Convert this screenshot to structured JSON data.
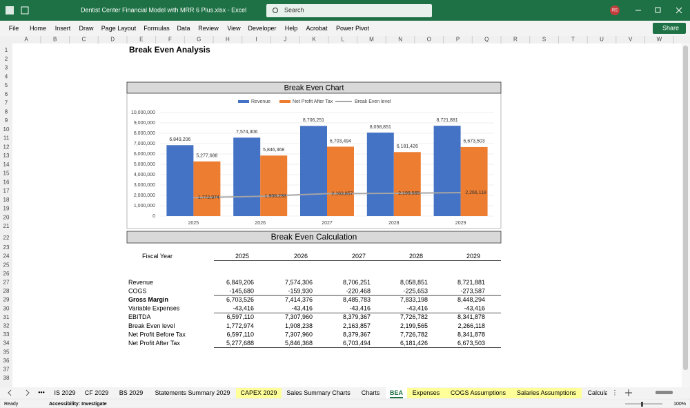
{
  "window": {
    "file_name": "Dentist Center Financial Model with MRR 6 Plus.xlsx  -  Excel",
    "search": "Search",
    "user": "RS"
  },
  "ribbon": {
    "tabs": [
      "File",
      "Home",
      "Insert",
      "Draw",
      "Page Layout",
      "Formulas",
      "Data",
      "Review",
      "View",
      "Developer",
      "Help",
      "Acrobat",
      "Power Pivot"
    ],
    "share": "Share"
  },
  "grid": {
    "columns": [
      "A",
      "B",
      "C",
      "D",
      "E",
      "F",
      "G",
      "H",
      "I",
      "J",
      "K",
      "L",
      "M",
      "N",
      "O",
      "P",
      "Q",
      "R",
      "S",
      "T",
      "U",
      "V",
      "W"
    ],
    "rows": [
      1,
      2,
      3,
      4,
      5,
      6,
      7,
      8,
      9,
      10,
      11,
      12,
      13,
      14,
      15,
      16,
      17,
      18,
      19,
      20,
      21,
      22,
      23,
      24,
      25,
      26,
      27,
      28,
      29,
      30,
      31,
      32,
      33,
      34,
      35,
      36,
      37,
      38
    ]
  },
  "sheet": {
    "title": "Break Even Analysis",
    "chart_heading": "Break Even Chart",
    "calc_heading": "Break Even Calculation"
  },
  "chart_data": {
    "type": "bar",
    "categories": [
      "2025",
      "2026",
      "2027",
      "2028",
      "2029"
    ],
    "series": [
      {
        "name": "Revenue",
        "type": "bar",
        "color": "#4472c4",
        "values": [
          6849206,
          7574306,
          8706251,
          8058851,
          8721881
        ],
        "value_labels": [
          "6,849,206",
          "7,574,306",
          "8,706,251",
          "8,058,851",
          "8,721,881"
        ]
      },
      {
        "name": "Net Profit After Tax",
        "type": "bar",
        "color": "#ed7d31",
        "values": [
          5277688,
          5846368,
          6703494,
          6181426,
          6673503
        ],
        "value_labels": [
          "5,277,688",
          "5,846,368",
          "6,703,494",
          "6,181,426",
          "6,673,503"
        ]
      },
      {
        "name": "Break Even level",
        "type": "line",
        "color": "#a5a5a5",
        "values": [
          1772974,
          1908238,
          2163857,
          2199565,
          2266118
        ],
        "value_labels": [
          "1,772,974",
          "1,908,238",
          "2,163,857",
          "2,199,565",
          "2,266,118"
        ]
      }
    ],
    "ylim": [
      0,
      10000000
    ],
    "yticks": [
      0,
      {
        "value": 1000000,
        "label": "1,000,000"
      },
      {
        "value": 2000000,
        "label": "2,000,000"
      },
      {
        "value": 3000000,
        "label": "3,000,000"
      },
      {
        "value": 4000000,
        "label": "4,000,000"
      },
      {
        "value": 5000000,
        "label": "5,000,000"
      },
      {
        "value": 6000000,
        "label": "6,000,000"
      },
      {
        "value": 7000000,
        "label": "7,000,000"
      },
      {
        "value": 8000000,
        "label": "8,000,000"
      },
      {
        "value": 9000000,
        "label": "9,000,000"
      },
      {
        "value": 10000000,
        "label": "10,000,000"
      }
    ],
    "grid": true,
    "legend": "top"
  },
  "table": {
    "header": [
      "Fiscal Year",
      "2025",
      "2026",
      "2027",
      "2028",
      "2029"
    ],
    "rows": [
      [
        "Revenue",
        "6,849,206",
        "7,574,306",
        "8,706,251",
        "8,058,851",
        "8,721,881"
      ],
      [
        "COGS",
        "-145,680",
        "-159,930",
        "-220,468",
        "-225,653",
        "-273,587"
      ],
      [
        "Gross Margin",
        "6,703,526",
        "7,414,376",
        "8,485,783",
        "7,833,198",
        "8,448,294"
      ],
      [
        "Variable Expenses",
        "-43,416",
        "-43,416",
        "-43,416",
        "-43,416",
        "-43,416"
      ],
      [
        "EBITDA",
        "6,597,110",
        "7,307,960",
        "8,379,367",
        "7,726,782",
        "8,341,878"
      ],
      [
        "Break Even level",
        "1,772,974",
        "1,908,238",
        "2,163,857",
        "2,199,565",
        "2,266,118"
      ],
      [
        "Net Profit Before Tax",
        "6,597,110",
        "7,307,960",
        "8,379,367",
        "7,726,782",
        "8,341,878"
      ],
      [
        "Net Profit After Tax",
        "5,277,688",
        "5,846,368",
        "6,703,494",
        "6,181,426",
        "6,673,503"
      ]
    ]
  },
  "sheet_tabs": [
    "IS 2029",
    "CF 2029",
    "BS 2029",
    "Statements Summary 2029",
    "CAPEX 2029",
    "Sales Summary Charts",
    "Charts",
    "BEA",
    "Expenses",
    "COGS Assumptions",
    "Salaries Assumptions",
    "Calcula"
  ],
  "status": {
    "mode": "Ready",
    "accessibility": "Accessibility: Investigate",
    "zoom": "100%"
  }
}
